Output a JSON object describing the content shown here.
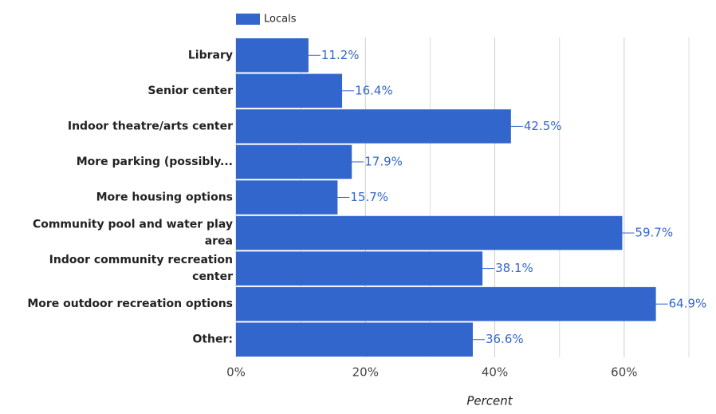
{
  "chart_data": {
    "type": "bar",
    "orientation": "horizontal",
    "categories": [
      "Library",
      "Senior center",
      "Indoor theatre/arts center",
      "More parking (possibly...",
      "More housing options",
      "Community pool and water play area",
      "Indoor community recreation center",
      "More outdoor recreation options",
      "Other:"
    ],
    "series": [
      {
        "name": "Locals",
        "color": "#3366cc",
        "values": [
          11.2,
          16.4,
          42.5,
          17.9,
          15.7,
          59.7,
          38.1,
          64.9,
          36.6
        ],
        "value_labels": [
          "11.2%",
          "16.4%",
          "42.5%",
          "17.9%",
          "15.7%",
          "59.7%",
          "38.1%",
          "64.9%",
          "36.6%"
        ]
      }
    ],
    "xlabel": "Percent",
    "xlim": [
      0,
      70
    ],
    "xticks": [
      {
        "value": 0,
        "label": "0%"
      },
      {
        "value": 20,
        "label": "20%"
      },
      {
        "value": 40,
        "label": "40%"
      },
      {
        "value": 60,
        "label": "60%"
      }
    ],
    "minor_xticks": [
      10,
      30,
      50,
      70
    ],
    "grid": true,
    "legend": "top"
  }
}
